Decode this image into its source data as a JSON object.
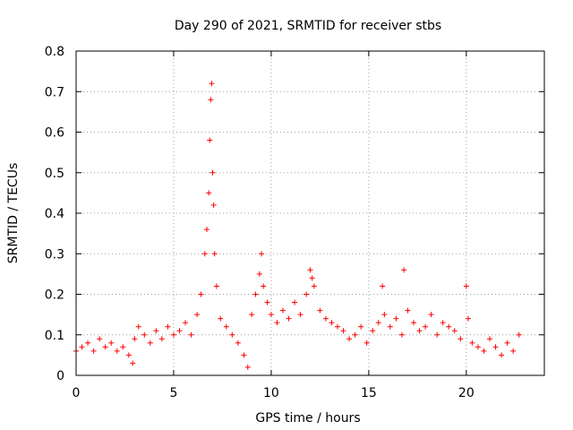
{
  "chart_data": {
    "type": "scatter",
    "title": "Day 290 of 2021, SRMTID for receiver stbs",
    "xlabel": "GPS time / hours",
    "ylabel": "SRMTID / TECUs",
    "xlim": [
      0,
      24
    ],
    "ylim": [
      0,
      0.8
    ],
    "xticks": [
      0,
      5,
      10,
      15,
      20
    ],
    "xtick_labels": [
      "0",
      "5",
      "10",
      "15",
      "20"
    ],
    "yticks": [
      0,
      0.1,
      0.2,
      0.3,
      0.4,
      0.5,
      0.6,
      0.7,
      0.8
    ],
    "ytick_labels": [
      "0",
      "0.1",
      "0.2",
      "0.3",
      "0.4",
      "0.5",
      "0.6",
      "0.7",
      "0.8"
    ],
    "grid": true,
    "marker": "+",
    "series": [
      {
        "name": "SRMTID",
        "color": "#ff0000",
        "x": [
          0.0,
          0.3,
          0.6,
          0.9,
          1.2,
          1.5,
          1.8,
          2.1,
          2.4,
          2.7,
          2.9,
          3.0,
          3.2,
          3.5,
          3.8,
          4.1,
          4.4,
          4.7,
          5.0,
          5.3,
          5.6,
          5.9,
          6.2,
          6.4,
          6.6,
          6.7,
          6.8,
          6.85,
          6.9,
          6.95,
          7.0,
          7.05,
          7.1,
          7.2,
          7.4,
          7.7,
          8.0,
          8.3,
          8.6,
          8.8,
          9.0,
          9.2,
          9.4,
          9.5,
          9.6,
          9.8,
          10.0,
          10.3,
          10.6,
          10.9,
          11.2,
          11.5,
          11.8,
          12.0,
          12.1,
          12.2,
          12.5,
          12.8,
          13.1,
          13.4,
          13.7,
          14.0,
          14.3,
          14.6,
          14.9,
          15.2,
          15.5,
          15.7,
          15.8,
          16.1,
          16.4,
          16.7,
          16.8,
          17.0,
          17.3,
          17.6,
          17.9,
          18.2,
          18.5,
          18.8,
          19.1,
          19.4,
          19.7,
          20.0,
          20.1,
          20.3,
          20.6,
          20.9,
          21.2,
          21.5,
          21.8,
          22.1,
          22.4,
          22.7
        ],
        "y": [
          0.06,
          0.07,
          0.08,
          0.06,
          0.09,
          0.07,
          0.08,
          0.06,
          0.07,
          0.05,
          0.03,
          0.09,
          0.12,
          0.1,
          0.08,
          0.11,
          0.09,
          0.12,
          0.1,
          0.11,
          0.13,
          0.1,
          0.15,
          0.2,
          0.3,
          0.36,
          0.45,
          0.58,
          0.68,
          0.72,
          0.5,
          0.42,
          0.3,
          0.22,
          0.14,
          0.12,
          0.1,
          0.08,
          0.05,
          0.02,
          0.15,
          0.2,
          0.25,
          0.3,
          0.22,
          0.18,
          0.15,
          0.13,
          0.16,
          0.14,
          0.18,
          0.15,
          0.2,
          0.26,
          0.24,
          0.22,
          0.16,
          0.14,
          0.13,
          0.12,
          0.11,
          0.09,
          0.1,
          0.12,
          0.08,
          0.11,
          0.13,
          0.22,
          0.15,
          0.12,
          0.14,
          0.1,
          0.26,
          0.16,
          0.13,
          0.11,
          0.12,
          0.15,
          0.1,
          0.13,
          0.12,
          0.11,
          0.09,
          0.22,
          0.14,
          0.08,
          0.07,
          0.06,
          0.09,
          0.07,
          0.05,
          0.08,
          0.06,
          0.1
        ]
      }
    ]
  }
}
